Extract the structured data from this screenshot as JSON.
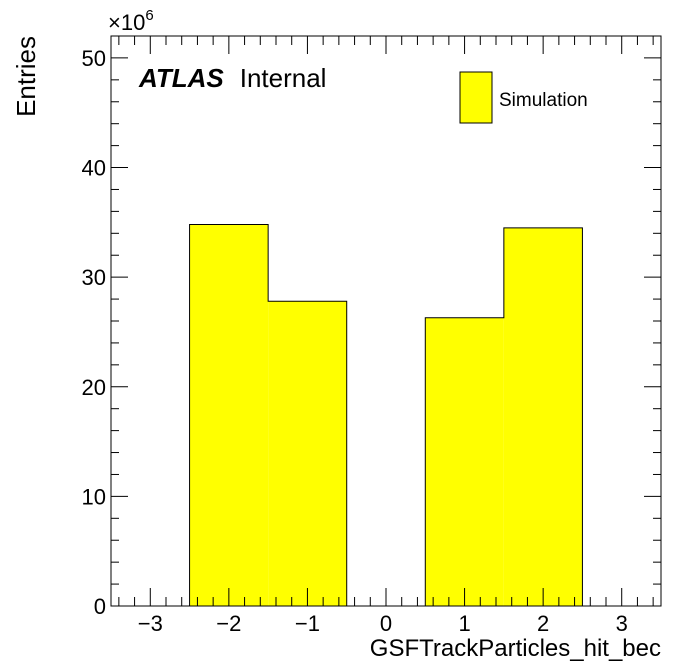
{
  "chart_data": {
    "type": "bar",
    "histogram": true,
    "xlabel": "GSFTrackParticles_hit_bec",
    "ylabel": "Entries",
    "y_multiplier_label": "×10",
    "y_multiplier_exponent": "6",
    "xlim": [
      -3.5,
      3.5
    ],
    "ylim": [
      0,
      52
    ],
    "xticks": [
      -3,
      -2,
      -1,
      0,
      1,
      2,
      3
    ],
    "xtick_labels": [
      "−3",
      "−2",
      "−1",
      "0",
      "1",
      "2",
      "3"
    ],
    "yticks": [
      0,
      10,
      20,
      30,
      40,
      50
    ],
    "ytick_labels": [
      "0",
      "10",
      "20",
      "30",
      "40",
      "50"
    ],
    "bins": [
      {
        "low": -2.5,
        "high": -1.5,
        "value": 34.8
      },
      {
        "low": -1.5,
        "high": -0.5,
        "value": 27.8
      },
      {
        "low": 0.5,
        "high": 1.5,
        "value": 26.3
      },
      {
        "low": 1.5,
        "high": 2.5,
        "value": 34.5
      }
    ],
    "series": [
      {
        "name": "Simulation",
        "color": "#ffff00"
      }
    ],
    "legend_position": "top-right",
    "annotations": {
      "experiment": "ATLAS",
      "status": "Internal"
    },
    "grid": false,
    "colors": {
      "fill": "#ffff00",
      "line": "#000000"
    }
  }
}
